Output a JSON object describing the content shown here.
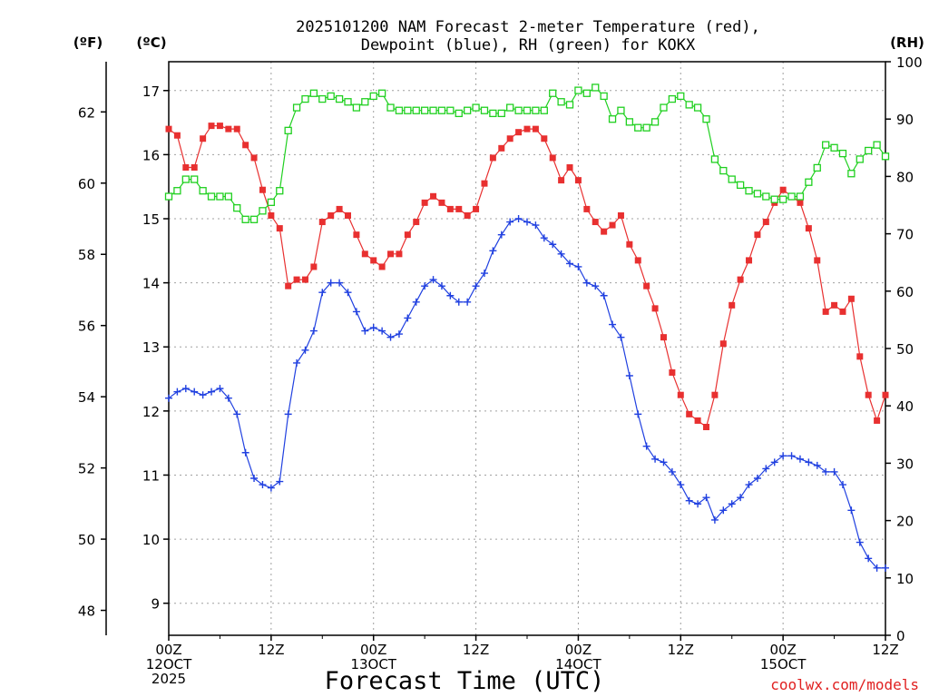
{
  "chart_data": {
    "type": "line",
    "title_lines": [
      "2025101200 NAM Forecast 2-meter Temperature (red),",
      "Dewpoint (blue), RH (green) for KOKX"
    ],
    "xlabel": "Forecast Time (UTC)",
    "credit": "coolwx.com/models",
    "units": {
      "fahrenheit": "(ºF)",
      "celsius": "(ºC)",
      "rh": "(RH)"
    },
    "x_hours_range": [
      0,
      84
    ],
    "x_ticks": [
      {
        "hour": 0,
        "lines": [
          "00Z",
          "12OCT",
          "2025"
        ]
      },
      {
        "hour": 12,
        "lines": [
          "12Z"
        ]
      },
      {
        "hour": 24,
        "lines": [
          "00Z",
          "13OCT"
        ]
      },
      {
        "hour": 36,
        "lines": [
          "12Z"
        ]
      },
      {
        "hour": 48,
        "lines": [
          "00Z",
          "14OCT"
        ]
      },
      {
        "hour": 60,
        "lines": [
          "12Z"
        ]
      },
      {
        "hour": 72,
        "lines": [
          "00Z",
          "15OCT"
        ]
      },
      {
        "hour": 84,
        "lines": [
          "12Z"
        ]
      }
    ],
    "celsius_range": [
      8.5,
      17.45
    ],
    "celsius_ticks": [
      9,
      10,
      11,
      12,
      13,
      14,
      15,
      16,
      17
    ],
    "fahrenheit_ticks": [
      48,
      50,
      52,
      54,
      56,
      58,
      60,
      62
    ],
    "rh_range": [
      0,
      100
    ],
    "rh_ticks": [
      0,
      10,
      20,
      30,
      40,
      50,
      60,
      70,
      80,
      90,
      100
    ],
    "colors": {
      "temperature": "#e83030",
      "dewpoint": "#2040e0",
      "rh": "#20d020"
    },
    "series": [
      {
        "name": "Temperature (red)",
        "axis": "celsius",
        "marker": "filled-square",
        "values": [
          16.4,
          16.3,
          15.8,
          15.8,
          16.25,
          16.45,
          16.45,
          16.4,
          16.4,
          16.15,
          15.95,
          15.45,
          15.05,
          14.85,
          13.95,
          14.05,
          14.05,
          14.25,
          14.95,
          15.05,
          15.15,
          15.05,
          14.75,
          14.45,
          14.35,
          14.25,
          14.45,
          14.45,
          14.75,
          14.95,
          15.25,
          15.35,
          15.25,
          15.15,
          15.15,
          15.05,
          15.15,
          15.55,
          15.95,
          16.1,
          16.25,
          16.35,
          16.4,
          16.4,
          16.25,
          15.95,
          15.6,
          15.8,
          15.6,
          15.15,
          14.95,
          14.8,
          14.9,
          15.05,
          14.6,
          14.35,
          13.95,
          13.6,
          13.15,
          12.6,
          12.25,
          11.95,
          11.85,
          11.75,
          12.25,
          13.05,
          13.65,
          14.05,
          14.35,
          14.75,
          14.95,
          15.25,
          15.45,
          15.35,
          15.25,
          14.85,
          14.35,
          13.55,
          13.65,
          13.55,
          13.75,
          12.85,
          12.25,
          11.85,
          12.25
        ]
      },
      {
        "name": "Dewpoint (blue)",
        "axis": "celsius",
        "marker": "plus",
        "values": [
          12.2,
          12.3,
          12.35,
          12.3,
          12.25,
          12.3,
          12.35,
          12.2,
          11.95,
          11.35,
          10.95,
          10.85,
          10.8,
          10.9,
          11.95,
          12.75,
          12.95,
          13.25,
          13.85,
          14.0,
          14.0,
          13.85,
          13.55,
          13.25,
          13.3,
          13.25,
          13.15,
          13.2,
          13.45,
          13.7,
          13.95,
          14.05,
          13.95,
          13.8,
          13.7,
          13.7,
          13.95,
          14.15,
          14.5,
          14.75,
          14.95,
          15.0,
          14.95,
          14.9,
          14.7,
          14.6,
          14.45,
          14.3,
          14.25,
          14.0,
          13.95,
          13.8,
          13.35,
          13.15,
          12.55,
          11.95,
          11.45,
          11.25,
          11.2,
          11.05,
          10.85,
          10.6,
          10.55,
          10.65,
          10.3,
          10.45,
          10.55,
          10.65,
          10.85,
          10.95,
          11.1,
          11.2,
          11.3,
          11.3,
          11.25,
          11.2,
          11.15,
          11.05,
          11.05,
          10.85,
          10.45,
          9.95,
          9.7,
          9.55,
          9.55
        ]
      },
      {
        "name": "RH (green)",
        "axis": "rh",
        "marker": "open-square",
        "values": [
          76.5,
          77.5,
          79.5,
          79.5,
          77.5,
          76.5,
          76.5,
          76.5,
          74.5,
          72.5,
          72.5,
          74.0,
          75.5,
          77.5,
          88.0,
          92.0,
          93.5,
          94.5,
          93.5,
          94.0,
          93.5,
          93.0,
          92.0,
          93.0,
          94.0,
          94.5,
          92.0,
          91.5,
          91.5,
          91.5,
          91.5,
          91.5,
          91.5,
          91.5,
          91.0,
          91.5,
          92.0,
          91.5,
          91.0,
          91.0,
          92.0,
          91.5,
          91.5,
          91.5,
          91.5,
          94.5,
          93.0,
          92.5,
          95.0,
          94.5,
          95.5,
          94.0,
          90.0,
          91.5,
          89.5,
          88.5,
          88.5,
          89.5,
          92.0,
          93.5,
          94.0,
          92.5,
          92.0,
          90.0,
          83.0,
          81.0,
          79.5,
          78.5,
          77.5,
          77.0,
          76.5,
          76.0,
          76.0,
          76.5,
          76.5,
          79.0,
          81.5,
          85.5,
          85.0,
          84.0,
          80.5,
          83.0,
          84.5,
          85.5,
          83.5
        ]
      }
    ]
  }
}
